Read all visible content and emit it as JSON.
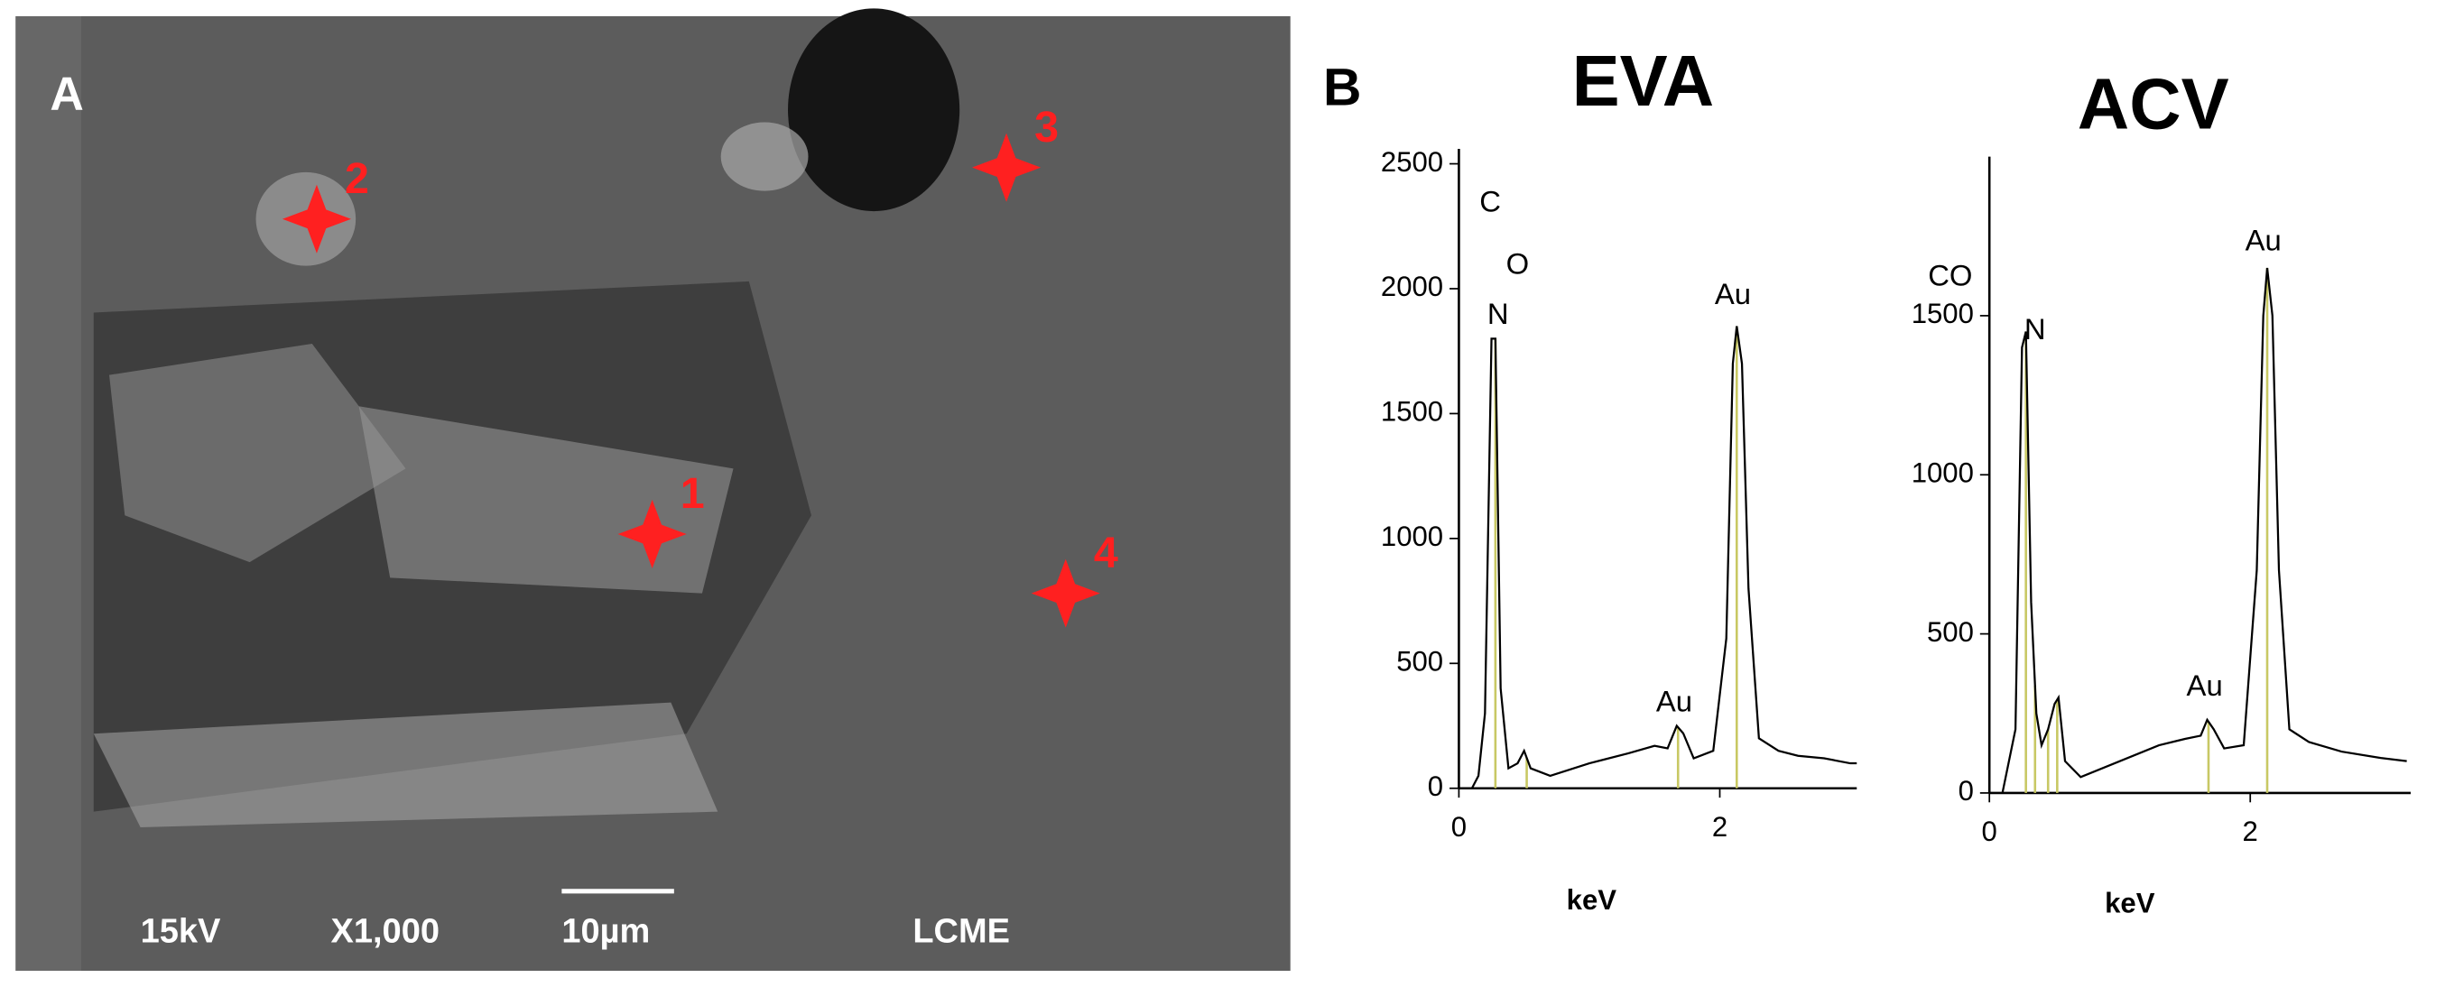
{
  "panel_a": {
    "letter": "A",
    "points": [
      "1",
      "2",
      "3",
      "4"
    ],
    "footer": [
      "15kV",
      "X1,000",
      "10µm",
      "LCME"
    ]
  },
  "panel_b": {
    "letter": "B"
  },
  "chart_data": [
    {
      "type": "line",
      "title": "EVA",
      "xlabel": "keV",
      "color": "#000000",
      "marker_color": "#c8c864",
      "x": [
        0.1,
        0.15,
        0.2,
        0.25,
        0.28,
        0.32,
        0.38,
        0.45,
        0.5,
        0.55,
        0.7,
        1.0,
        1.3,
        1.5,
        1.6,
        1.67,
        1.72,
        1.8,
        1.95,
        2.05,
        2.1,
        2.13,
        2.17,
        2.22,
        2.3,
        2.45,
        2.6,
        2.8,
        3.0,
        3.05
      ],
      "values": [
        0,
        50,
        300,
        1800,
        1800,
        400,
        80,
        100,
        150,
        80,
        50,
        100,
        140,
        170,
        160,
        250,
        220,
        120,
        150,
        600,
        1700,
        1850,
        1700,
        800,
        200,
        150,
        130,
        120,
        100,
        100
      ],
      "markers": [
        0.28,
        0.52,
        1.68,
        2.13
      ],
      "annotations": [
        {
          "text": "C",
          "x": 0.24,
          "y": 2340
        },
        {
          "text": "O",
          "x": 0.45,
          "y": 2090
        },
        {
          "text": "N",
          "x": 0.3,
          "y": 1890
        },
        {
          "text": "Au",
          "x": 2.1,
          "y": 1970
        },
        {
          "text": "Au",
          "x": 1.65,
          "y": 340
        }
      ],
      "xlim": [
        0,
        3.05
      ],
      "ylim": [
        0,
        2560
      ],
      "xticks": [
        0,
        2
      ],
      "yticks": [
        0,
        500,
        1000,
        1500,
        2000,
        2500
      ]
    },
    {
      "type": "line",
      "title": "ACV",
      "xlabel": "keV",
      "color": "#000000",
      "marker_color": "#c8c864",
      "x": [
        0.1,
        0.2,
        0.25,
        0.28,
        0.32,
        0.36,
        0.4,
        0.45,
        0.5,
        0.53,
        0.58,
        0.7,
        1.0,
        1.3,
        1.5,
        1.62,
        1.67,
        1.72,
        1.8,
        1.95,
        2.05,
        2.1,
        2.13,
        2.17,
        2.22,
        2.3,
        2.45,
        2.7,
        3.0,
        3.2
      ],
      "values": [
        0,
        200,
        1400,
        1450,
        600,
        250,
        150,
        200,
        280,
        300,
        100,
        50,
        100,
        150,
        170,
        180,
        230,
        200,
        140,
        150,
        700,
        1500,
        1650,
        1500,
        700,
        200,
        160,
        130,
        110,
        100
      ],
      "markers": [
        0.28,
        0.35,
        0.45,
        0.52,
        1.68,
        2.13
      ],
      "annotations": [
        {
          "text": "CO",
          "x": -0.3,
          "y": 1620
        },
        {
          "text": "N",
          "x": 0.35,
          "y": 1450
        },
        {
          "text": "Au",
          "x": 2.1,
          "y": 1730
        },
        {
          "text": "Au",
          "x": 1.65,
          "y": 330
        }
      ],
      "xlim": [
        0,
        3.23
      ],
      "ylim": [
        0,
        2000
      ],
      "xticks": [
        0,
        2
      ],
      "yticks": [
        0,
        500,
        1000,
        1500
      ]
    }
  ]
}
